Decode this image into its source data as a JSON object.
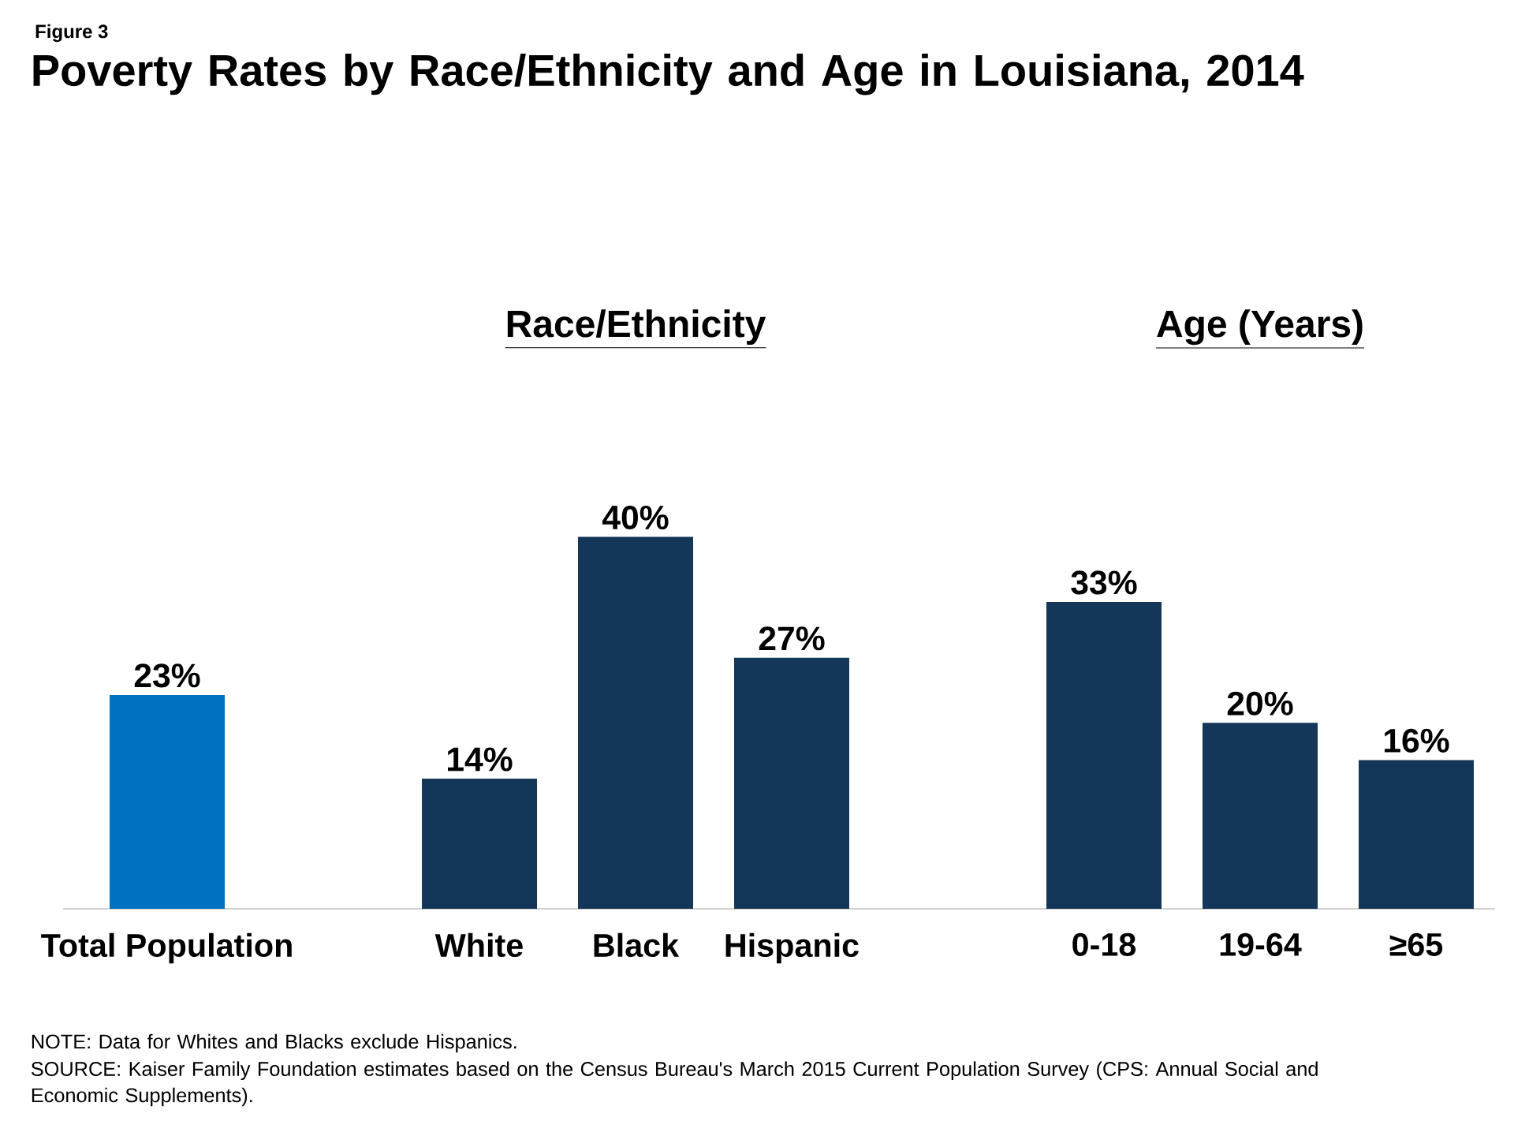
{
  "chart_data": {
    "type": "bar",
    "title": "Poverty Rates by Race/Ethnicity and Age in Louisiana, 2014",
    "categories": [
      "Total Population",
      null,
      "White",
      "Black",
      "Hispanic",
      null,
      "0-18",
      "19-64",
      "≥65"
    ],
    "values": [
      23,
      null,
      14,
      40,
      27,
      null,
      33,
      20,
      16
    ],
    "colors": [
      "#0070c0",
      "#0070c0",
      "#143659",
      "#143659",
      "#143659",
      "#143659",
      "#143659",
      "#143659",
      "#143659"
    ],
    "value_labels": [
      "23%",
      null,
      "14%",
      "40%",
      "27%",
      null,
      "33%",
      "20%",
      "16%"
    ],
    "annotations": [
      "Figure 3",
      "Race/Ethnicity",
      "Age (Years)",
      "NOTE: Data for Whites and Blacks exclude Hispanics.",
      "SOURCE: Kaiser Family Foundation estimates based on the Census Bureau's March 2015 Current Population Survey (CPS: Annual Social and Economic Supplements)."
    ],
    "grid": false
  }
}
